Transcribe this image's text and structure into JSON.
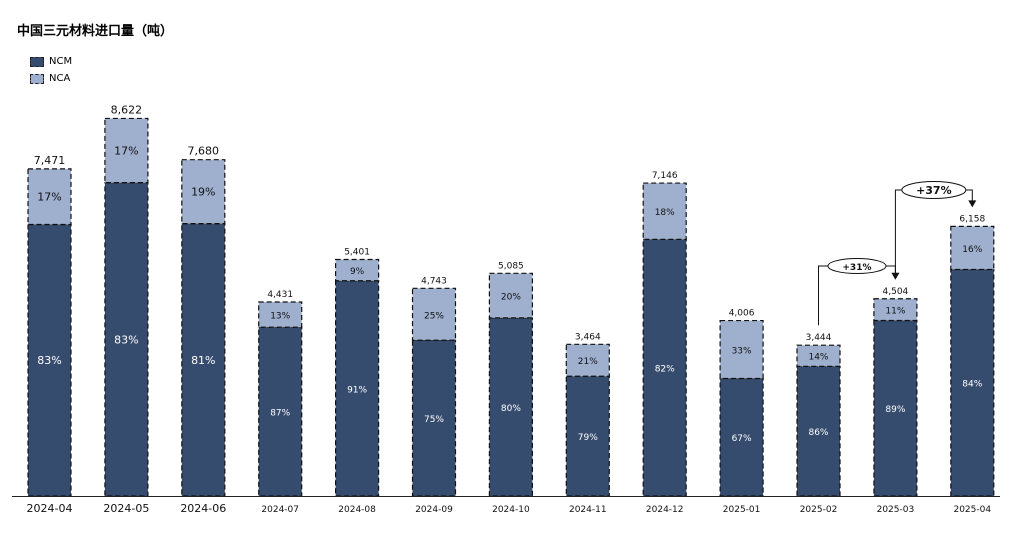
{
  "chart_data": {
    "type": "bar",
    "stacked": true,
    "title": "中国三元材料进口量（吨）",
    "categories": [
      "2024-04",
      "2024-05",
      "2024-06",
      "2024-07",
      "2024-08",
      "2024-09",
      "2024-10",
      "2024-11",
      "2024-12",
      "2025-01",
      "2025-02",
      "2025-03",
      "2025-04"
    ],
    "totals": [
      7471,
      8622,
      7680,
      4431,
      5401,
      4743,
      5085,
      3464,
      7146,
      4006,
      3444,
      4504,
      6158
    ],
    "total_labels": [
      "7,471",
      "8,622",
      "7,680",
      "4,431",
      "5,401",
      "4,743",
      "5,085",
      "3,464",
      "7,146",
      "4,006",
      "3,444",
      "4,504",
      "6,158"
    ],
    "series": [
      {
        "name": "NCM",
        "color": "#364c6e",
        "share_pct": [
          83,
          83,
          81,
          87,
          91,
          75,
          80,
          79,
          82,
          67,
          86,
          89,
          84
        ],
        "share_labels": [
          "83%",
          "83%",
          "81%",
          "87%",
          "91%",
          "75%",
          "80%",
          "79%",
          "82%",
          "67%",
          "86%",
          "89%",
          "84%"
        ]
      },
      {
        "name": "NCA",
        "color": "#9fb0cf",
        "share_pct": [
          17,
          17,
          19,
          13,
          9,
          25,
          20,
          21,
          18,
          33,
          14,
          11,
          16
        ],
        "share_labels": [
          "17%",
          "17%",
          "19%",
          "13%",
          "9%",
          "25%",
          "20%",
          "21%",
          "18%",
          "33%",
          "14%",
          "11%",
          "16%"
        ]
      }
    ],
    "ylim": [
      0,
      9500
    ],
    "grid": false,
    "legend_position": "top-left",
    "annotations": [
      {
        "text": "+31%",
        "from_index": 10,
        "to_index": 11
      },
      {
        "text": "+37%",
        "from_index": 11,
        "to_index": 12
      }
    ]
  }
}
